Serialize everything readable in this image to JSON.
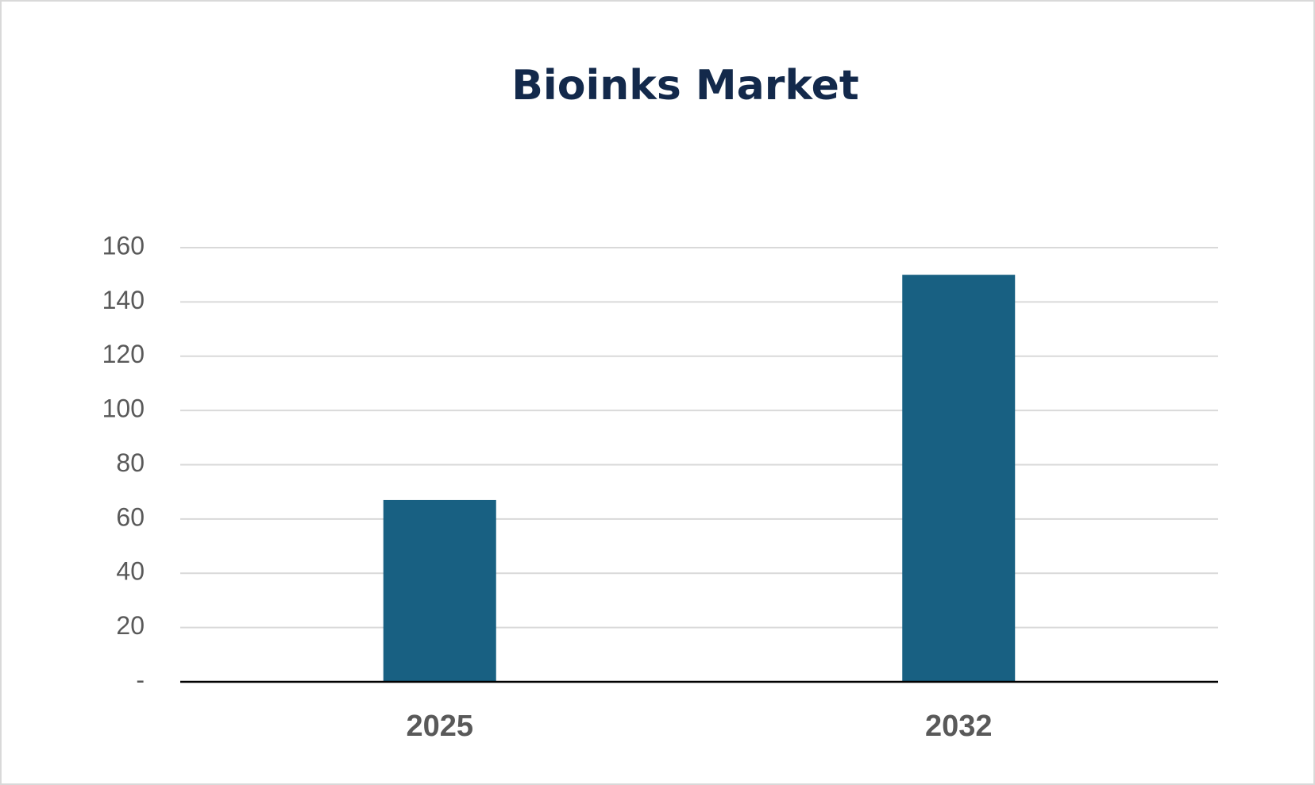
{
  "chart_data": {
    "type": "bar",
    "title": "Bioinks Market",
    "categories": [
      "2025",
      "2032"
    ],
    "values": [
      67,
      150
    ],
    "color": "#186082",
    "ylim": [
      0,
      160
    ],
    "yticks": [
      {
        "value": 0,
        "label": "-"
      },
      20,
      40,
      60,
      80,
      100,
      120,
      140,
      160
    ],
    "grid": true
  }
}
